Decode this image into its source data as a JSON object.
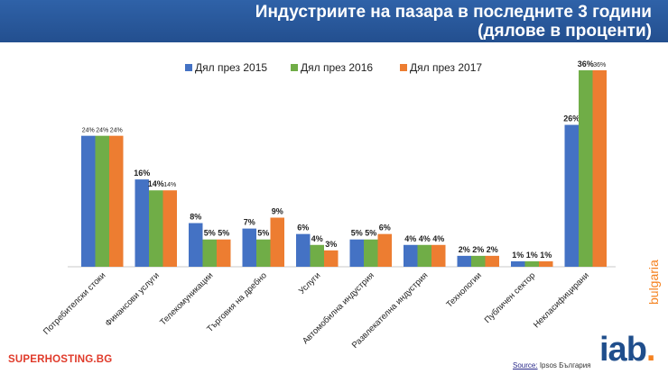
{
  "header": {
    "title_line1": "Индустриите на пазара в последните 3 години",
    "title_line2": "(дялове в проценти)"
  },
  "chart_data": {
    "type": "bar",
    "title": "Индустриите на пазара в последните 3 години (дялове в проценти)",
    "categories": [
      "Потребителски стоки",
      "Финансови услуги",
      "Телекомуникации",
      "Търговия на дребно",
      "Услуги",
      "Автомобилна индустрия",
      "Развлекателна индустрия",
      "Технологии",
      "Публичен сектор",
      "Некласифицирани"
    ],
    "series": [
      {
        "name": "Дял през 2015",
        "color": "#4472c4",
        "values": [
          24,
          16,
          8,
          7,
          6,
          5,
          4,
          2,
          1,
          26
        ]
      },
      {
        "name": "Дял през 2016",
        "color": "#70ad47",
        "values": [
          24,
          14,
          5,
          5,
          4,
          5,
          4,
          2,
          1,
          36
        ]
      },
      {
        "name": "Дял през 2017",
        "color": "#ed7d31",
        "values": [
          24,
          14,
          5,
          9,
          3,
          6,
          4,
          2,
          1,
          36
        ]
      }
    ],
    "data_labels": [
      [
        "24%",
        "16%",
        "8%",
        "7%",
        "6%",
        "5%",
        "4%",
        "2%",
        "1%",
        "26%"
      ],
      [
        "24%",
        "14%",
        "5%",
        "5%",
        "4%",
        "5%",
        "4%",
        "2%",
        "1%",
        "36%"
      ],
      [
        "24%",
        "14%",
        "5%",
        "9%",
        "3%",
        "6%",
        "4%",
        "2%",
        "1%",
        "36%"
      ]
    ],
    "ylim": [
      0,
      36
    ],
    "legend_position": "top-center",
    "grid": false,
    "xlabel": "",
    "ylabel": ""
  },
  "footer": {
    "brand": "SUPERHOSTING.BG",
    "source_label": "Source:",
    "source_text": "Ipsos България",
    "logo_text": "iab",
    "logo_dot": ".",
    "logo_sub": "bulgaria"
  }
}
